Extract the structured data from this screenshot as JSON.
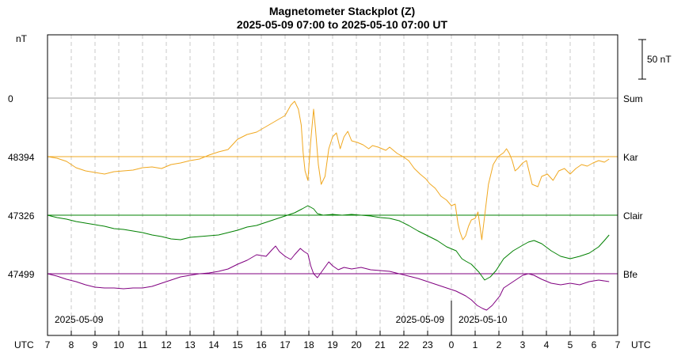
{
  "chart_data": {
    "type": "line",
    "title": "Magnetometer Stackplot (Z)",
    "subtitle": "2025-05-09 07:00 to 2025-05-10 07:00 UT",
    "y_unit": "nT",
    "scale_bar_label": "50 nT",
    "x_axis_label_left": "UTC",
    "x_axis_label_right": "UTC",
    "x_ticks": [
      "7",
      "8",
      "9",
      "10",
      "11",
      "12",
      "13",
      "14",
      "15",
      "16",
      "17",
      "18",
      "19",
      "20",
      "21",
      "22",
      "23",
      "0",
      "1",
      "2",
      "3",
      "4",
      "5",
      "6",
      "7"
    ],
    "date_labels": [
      {
        "text": "2025-05-09",
        "hour_offset": 0.3,
        "anchor": "start"
      },
      {
        "text": "2025-05-09",
        "hour_offset": 16.7,
        "anchor": "end"
      },
      {
        "text": "2025-05-10",
        "hour_offset": 17.3,
        "anchor": "start"
      }
    ],
    "day_boundary_hour_offset": 17,
    "x_range_hours": [
      0,
      24
    ],
    "series": [
      {
        "name": "Sum",
        "baseline_label": "0",
        "color": "#999999",
        "points": []
      },
      {
        "name": "Kar",
        "baseline_label": "48394",
        "color": "#f0a820",
        "points": [
          [
            0,
            0
          ],
          [
            0.5,
            -2
          ],
          [
            1,
            -6
          ],
          [
            1.5,
            -14
          ],
          [
            2,
            -18
          ],
          [
            2.5,
            -20
          ],
          [
            3,
            -22
          ],
          [
            3.5,
            -19
          ],
          [
            4,
            -18
          ],
          [
            4.5,
            -17
          ],
          [
            5,
            -14
          ],
          [
            5.5,
            -13
          ],
          [
            6,
            -15
          ],
          [
            6.5,
            -10
          ],
          [
            7,
            -8
          ],
          [
            7.5,
            -5
          ],
          [
            8,
            -3
          ],
          [
            8.5,
            2
          ],
          [
            9,
            6
          ],
          [
            9.5,
            9
          ],
          [
            10,
            22
          ],
          [
            10.5,
            28
          ],
          [
            11,
            31
          ],
          [
            11.5,
            38
          ],
          [
            12,
            45
          ],
          [
            12.5,
            52
          ],
          [
            12.8,
            65
          ],
          [
            13,
            70
          ],
          [
            13.2,
            60
          ],
          [
            13.35,
            40
          ],
          [
            13.45,
            5
          ],
          [
            13.55,
            -18
          ],
          [
            13.7,
            -30
          ],
          [
            13.85,
            20
          ],
          [
            14,
            60
          ],
          [
            14.1,
            35
          ],
          [
            14.25,
            -10
          ],
          [
            14.4,
            -35
          ],
          [
            14.6,
            -25
          ],
          [
            14.8,
            10
          ],
          [
            15,
            25
          ],
          [
            15.2,
            30
          ],
          [
            15.4,
            10
          ],
          [
            15.6,
            25
          ],
          [
            15.8,
            32
          ],
          [
            16,
            20
          ],
          [
            16.3,
            18
          ],
          [
            16.6,
            15
          ],
          [
            16.9,
            10
          ],
          [
            17.1,
            14
          ],
          [
            17.4,
            12
          ],
          [
            17.8,
            8
          ],
          [
            18,
            12
          ],
          [
            18.4,
            4
          ],
          [
            18.7,
            0
          ],
          [
            19,
            -5
          ],
          [
            19.3,
            -15
          ],
          [
            19.6,
            -22
          ],
          [
            19.9,
            -28
          ],
          [
            20.1,
            -34
          ],
          [
            20.4,
            -40
          ],
          [
            20.7,
            -50
          ],
          [
            21,
            -55
          ],
          [
            21.25,
            -62
          ],
          [
            21.45,
            -60
          ],
          [
            21.6,
            -85
          ],
          [
            21.7,
            -95
          ],
          [
            21.85,
            -105
          ],
          [
            22,
            -100
          ],
          [
            22.15,
            -88
          ],
          [
            22.3,
            -80
          ],
          [
            22.5,
            -78
          ],
          [
            22.65,
            -70
          ],
          [
            22.85,
            -105
          ],
          [
            23,
            -75
          ],
          [
            23.2,
            -35
          ],
          [
            23.45,
            -10
          ],
          [
            23.7,
            0
          ],
          [
            24,
            5
          ],
          [
            24.15,
            10
          ],
          [
            24.3,
            4
          ],
          [
            24.45,
            -5
          ],
          [
            24.6,
            -18
          ],
          [
            24.75,
            -15
          ],
          [
            25,
            -8
          ],
          [
            25.2,
            -5
          ],
          [
            25.5,
            -35
          ],
          [
            25.8,
            -38
          ],
          [
            26,
            -25
          ],
          [
            26.3,
            -22
          ],
          [
            26.6,
            -30
          ],
          [
            26.9,
            -18
          ],
          [
            27.2,
            -15
          ],
          [
            27.5,
            -22
          ],
          [
            27.8,
            -15
          ],
          [
            28.1,
            -10
          ],
          [
            28.4,
            -12
          ],
          [
            28.7,
            -8
          ],
          [
            29,
            -5
          ],
          [
            29.3,
            -7
          ],
          [
            29.55,
            -3
          ]
        ]
      },
      {
        "name": "Clair",
        "baseline_label": "47326",
        "color": "#008000",
        "points": [
          [
            0,
            0
          ],
          [
            0.5,
            -3
          ],
          [
            1,
            -5
          ],
          [
            1.5,
            -8
          ],
          [
            2,
            -10
          ],
          [
            2.5,
            -12
          ],
          [
            3,
            -14
          ],
          [
            3.5,
            -17
          ],
          [
            4,
            -18
          ],
          [
            4.5,
            -20
          ],
          [
            5,
            -22
          ],
          [
            5.5,
            -25
          ],
          [
            6,
            -27
          ],
          [
            6.5,
            -30
          ],
          [
            7,
            -31
          ],
          [
            7.5,
            -28
          ],
          [
            8,
            -27
          ],
          [
            8.5,
            -26
          ],
          [
            9,
            -25
          ],
          [
            9.5,
            -22
          ],
          [
            10,
            -19
          ],
          [
            10.5,
            -15
          ],
          [
            11,
            -13
          ],
          [
            11.5,
            -9
          ],
          [
            12,
            -5
          ],
          [
            12.5,
            -1
          ],
          [
            13,
            3
          ],
          [
            13.4,
            8
          ],
          [
            13.7,
            12
          ],
          [
            14,
            8
          ],
          [
            14.2,
            2
          ],
          [
            14.5,
            0
          ],
          [
            15,
            1
          ],
          [
            15.5,
            0
          ],
          [
            16,
            1
          ],
          [
            16.5,
            0
          ],
          [
            17,
            -1
          ],
          [
            17.5,
            -3
          ],
          [
            18,
            -4
          ],
          [
            18.5,
            -7
          ],
          [
            19,
            -13
          ],
          [
            19.5,
            -20
          ],
          [
            20,
            -26
          ],
          [
            20.5,
            -32
          ],
          [
            21,
            -40
          ],
          [
            21.5,
            -45
          ],
          [
            21.8,
            -55
          ],
          [
            22,
            -58
          ],
          [
            22.3,
            -62
          ],
          [
            22.7,
            -72
          ],
          [
            23,
            -82
          ],
          [
            23.3,
            -78
          ],
          [
            23.6,
            -70
          ],
          [
            24,
            -55
          ],
          [
            24.5,
            -45
          ],
          [
            25,
            -38
          ],
          [
            25.3,
            -34
          ],
          [
            25.6,
            -32
          ],
          [
            26,
            -36
          ],
          [
            26.5,
            -45
          ],
          [
            27,
            -52
          ],
          [
            27.5,
            -55
          ],
          [
            28,
            -52
          ],
          [
            28.5,
            -48
          ],
          [
            29,
            -40
          ],
          [
            29.3,
            -32
          ],
          [
            29.55,
            -25
          ]
        ]
      },
      {
        "name": "Bfe",
        "baseline_label": "47499",
        "color": "#800080",
        "points": [
          [
            0,
            0
          ],
          [
            0.5,
            -3
          ],
          [
            1,
            -7
          ],
          [
            1.5,
            -10
          ],
          [
            2,
            -14
          ],
          [
            2.5,
            -17
          ],
          [
            3,
            -18
          ],
          [
            3.5,
            -18
          ],
          [
            4,
            -19
          ],
          [
            4.5,
            -18
          ],
          [
            5,
            -18
          ],
          [
            5.5,
            -16
          ],
          [
            6,
            -12
          ],
          [
            6.5,
            -8
          ],
          [
            7,
            -4
          ],
          [
            7.5,
            -2
          ],
          [
            8,
            0
          ],
          [
            8.5,
            1
          ],
          [
            9,
            3
          ],
          [
            9.5,
            6
          ],
          [
            10,
            12
          ],
          [
            10.5,
            17
          ],
          [
            11,
            24
          ],
          [
            11.5,
            22
          ],
          [
            11.8,
            30
          ],
          [
            12,
            35
          ],
          [
            12.2,
            28
          ],
          [
            12.5,
            22
          ],
          [
            12.8,
            18
          ],
          [
            13,
            24
          ],
          [
            13.3,
            32
          ],
          [
            13.5,
            28
          ],
          [
            13.7,
            25
          ],
          [
            13.85,
            10
          ],
          [
            14,
            0
          ],
          [
            14.2,
            -5
          ],
          [
            14.5,
            5
          ],
          [
            14.8,
            15
          ],
          [
            15,
            10
          ],
          [
            15.3,
            5
          ],
          [
            15.6,
            8
          ],
          [
            16,
            6
          ],
          [
            16.5,
            8
          ],
          [
            17,
            5
          ],
          [
            17.5,
            4
          ],
          [
            18,
            3
          ],
          [
            18.5,
            0
          ],
          [
            19,
            -3
          ],
          [
            19.5,
            -6
          ],
          [
            20,
            -10
          ],
          [
            20.5,
            -14
          ],
          [
            21,
            -18
          ],
          [
            21.5,
            -22
          ],
          [
            22,
            -28
          ],
          [
            22.3,
            -33
          ],
          [
            22.6,
            -40
          ],
          [
            22.9,
            -44
          ],
          [
            23.1,
            -46
          ],
          [
            23.4,
            -40
          ],
          [
            23.8,
            -28
          ],
          [
            24,
            -18
          ],
          [
            24.5,
            -10
          ],
          [
            25,
            -2
          ],
          [
            25.3,
            0
          ],
          [
            25.6,
            -2
          ],
          [
            26,
            -7
          ],
          [
            26.5,
            -12
          ],
          [
            27,
            -14
          ],
          [
            27.5,
            -12
          ],
          [
            28,
            -14
          ],
          [
            28.5,
            -10
          ],
          [
            29,
            -8
          ],
          [
            29.55,
            -10
          ]
        ]
      }
    ]
  }
}
